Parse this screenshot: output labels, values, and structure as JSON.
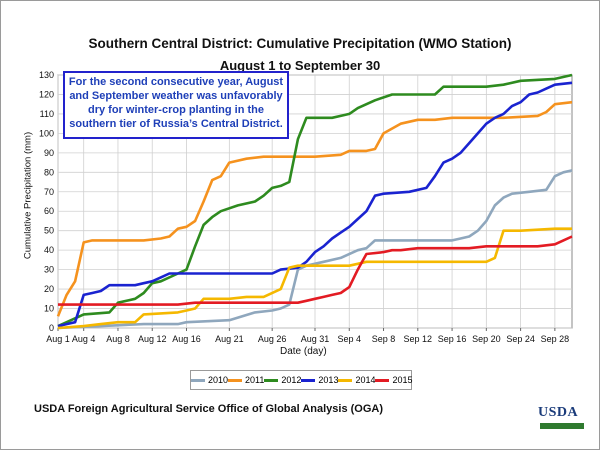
{
  "title": "Southern Central District: Cumulative Precipitation (WMO Station)",
  "subtitle": "August 1 to September 30",
  "annotation": "For the second consecutive year, August and September weather was unfavorably dry for winter-crop planting in the southern tier of Russia’s Central District.",
  "source": "USDA Foreign Agricultural Service Office of Global Analysis (OGA)",
  "logo_text": "USDA",
  "chart_data": {
    "type": "line",
    "xlabel": "Date (day)",
    "ylabel": "Cumulative Precipitation (mm)",
    "ylim": [
      0,
      130
    ],
    "yticks": [
      0,
      10,
      20,
      30,
      40,
      50,
      60,
      70,
      80,
      90,
      100,
      110,
      120,
      130
    ],
    "xtick_labels": [
      "Aug 1",
      "Aug 4",
      "Aug 8",
      "Aug 12",
      "Aug 16",
      "Aug 21",
      "Aug 26",
      "Aug 31",
      "Sep 4",
      "Sep 8",
      "Sep 12",
      "Sep 16",
      "Sep 20",
      "Sep 24",
      "Sep 28"
    ],
    "xtick_days": [
      0,
      3,
      7,
      11,
      15,
      20,
      25,
      30,
      34,
      38,
      42,
      46,
      50,
      54,
      58
    ],
    "x_days_range": [
      0,
      60
    ],
    "grid": true,
    "legend_position": "bottom",
    "series": [
      {
        "name": "2010",
        "color": "#8fa7bd",
        "points": [
          [
            0,
            0
          ],
          [
            5,
            1
          ],
          [
            10,
            2
          ],
          [
            14,
            2
          ],
          [
            15,
            3
          ],
          [
            20,
            4
          ],
          [
            23,
            8
          ],
          [
            25,
            9
          ],
          [
            26,
            10
          ],
          [
            27,
            12
          ],
          [
            28,
            30
          ],
          [
            29,
            32
          ],
          [
            31,
            34
          ],
          [
            33,
            36
          ],
          [
            35,
            40
          ],
          [
            36,
            41
          ],
          [
            37,
            45
          ],
          [
            42,
            45
          ],
          [
            46,
            45
          ],
          [
            47,
            46
          ],
          [
            48,
            47
          ],
          [
            49,
            50
          ],
          [
            50,
            55
          ],
          [
            51,
            63
          ],
          [
            52,
            67
          ],
          [
            53,
            69
          ],
          [
            55,
            70
          ],
          [
            57,
            71
          ],
          [
            58,
            78
          ],
          [
            59,
            80
          ],
          [
            60,
            81
          ]
        ]
      },
      {
        "name": "2011",
        "color": "#f5921e",
        "points": [
          [
            0,
            6
          ],
          [
            1,
            17
          ],
          [
            2,
            24
          ],
          [
            3,
            44
          ],
          [
            4,
            45
          ],
          [
            10,
            45
          ],
          [
            12,
            46
          ],
          [
            13,
            47
          ],
          [
            14,
            51
          ],
          [
            15,
            52
          ],
          [
            16,
            55
          ],
          [
            17,
            65
          ],
          [
            18,
            76
          ],
          [
            19,
            78
          ],
          [
            20,
            85
          ],
          [
            22,
            87
          ],
          [
            24,
            88
          ],
          [
            30,
            88
          ],
          [
            33,
            89
          ],
          [
            34,
            91
          ],
          [
            36,
            91
          ],
          [
            37,
            92
          ],
          [
            38,
            100
          ],
          [
            40,
            105
          ],
          [
            42,
            107
          ],
          [
            44,
            107
          ],
          [
            46,
            108
          ],
          [
            48,
            108
          ],
          [
            50,
            108
          ],
          [
            52,
            108
          ],
          [
            56,
            109
          ],
          [
            57,
            111
          ],
          [
            58,
            115
          ],
          [
            60,
            116
          ]
        ]
      },
      {
        "name": "2012",
        "color": "#2e8b1f",
        "points": [
          [
            0,
            1
          ],
          [
            1,
            3
          ],
          [
            2,
            5
          ],
          [
            3,
            7
          ],
          [
            6,
            8
          ],
          [
            7,
            13
          ],
          [
            9,
            15
          ],
          [
            10,
            18
          ],
          [
            11,
            23
          ],
          [
            12,
            24
          ],
          [
            14,
            28
          ],
          [
            15,
            30
          ],
          [
            16,
            42
          ],
          [
            17,
            53
          ],
          [
            18,
            57
          ],
          [
            19,
            60
          ],
          [
            21,
            63
          ],
          [
            23,
            65
          ],
          [
            24,
            68
          ],
          [
            25,
            72
          ],
          [
            26,
            73
          ],
          [
            27,
            75
          ],
          [
            28,
            97
          ],
          [
            29,
            108
          ],
          [
            32,
            108
          ],
          [
            33,
            109
          ],
          [
            34,
            110
          ],
          [
            35,
            113
          ],
          [
            36,
            115
          ],
          [
            37,
            117
          ],
          [
            39,
            120
          ],
          [
            44,
            120
          ],
          [
            45,
            124
          ],
          [
            50,
            124
          ],
          [
            52,
            125
          ],
          [
            54,
            127
          ],
          [
            58,
            128
          ],
          [
            60,
            130
          ]
        ]
      },
      {
        "name": "2013",
        "color": "#1a23d0",
        "points": [
          [
            0,
            1
          ],
          [
            1,
            2
          ],
          [
            2,
            3
          ],
          [
            3,
            17
          ],
          [
            4,
            18
          ],
          [
            5,
            19
          ],
          [
            6,
            22
          ],
          [
            9,
            22
          ],
          [
            10,
            23
          ],
          [
            11,
            24
          ],
          [
            12,
            26
          ],
          [
            13,
            28
          ],
          [
            20,
            28
          ],
          [
            25,
            28
          ],
          [
            26,
            30
          ],
          [
            28,
            31
          ],
          [
            29,
            34
          ],
          [
            30,
            39
          ],
          [
            31,
            42
          ],
          [
            32,
            46
          ],
          [
            33,
            49
          ],
          [
            34,
            52
          ],
          [
            35,
            56
          ],
          [
            36,
            60
          ],
          [
            37,
            68
          ],
          [
            38,
            69
          ],
          [
            41,
            70
          ],
          [
            43,
            72
          ],
          [
            44,
            78
          ],
          [
            45,
            85
          ],
          [
            46,
            87
          ],
          [
            47,
            90
          ],
          [
            48,
            95
          ],
          [
            49,
            100
          ],
          [
            50,
            105
          ],
          [
            51,
            108
          ],
          [
            52,
            110
          ],
          [
            53,
            114
          ],
          [
            54,
            116
          ],
          [
            55,
            120
          ],
          [
            56,
            121
          ],
          [
            57,
            123
          ],
          [
            58,
            125
          ],
          [
            60,
            126
          ]
        ]
      },
      {
        "name": "2014",
        "color": "#f5b800",
        "points": [
          [
            0,
            0
          ],
          [
            3,
            1
          ],
          [
            5,
            2
          ],
          [
            7,
            3
          ],
          [
            9,
            3
          ],
          [
            10,
            7
          ],
          [
            14,
            8
          ],
          [
            15,
            9
          ],
          [
            16,
            10
          ],
          [
            17,
            15
          ],
          [
            20,
            15
          ],
          [
            22,
            16
          ],
          [
            24,
            16
          ],
          [
            26,
            20
          ],
          [
            27,
            31
          ],
          [
            28,
            32
          ],
          [
            30,
            32
          ],
          [
            34,
            32
          ],
          [
            35,
            33
          ],
          [
            36,
            34
          ],
          [
            46,
            34
          ],
          [
            50,
            34
          ],
          [
            51,
            36
          ],
          [
            52,
            50
          ],
          [
            54,
            50
          ],
          [
            58,
            51
          ],
          [
            60,
            51
          ]
        ]
      },
      {
        "name": "2015",
        "color": "#e31b23",
        "points": [
          [
            0,
            12
          ],
          [
            10,
            12
          ],
          [
            14,
            12
          ],
          [
            16,
            13
          ],
          [
            20,
            13
          ],
          [
            24,
            13
          ],
          [
            28,
            13
          ],
          [
            29,
            14
          ],
          [
            30,
            15
          ],
          [
            31,
            16
          ],
          [
            32,
            17
          ],
          [
            33,
            18
          ],
          [
            34,
            21
          ],
          [
            35,
            30
          ],
          [
            36,
            38
          ],
          [
            38,
            39
          ],
          [
            39,
            40
          ],
          [
            40,
            40
          ],
          [
            42,
            41
          ],
          [
            44,
            41
          ],
          [
            46,
            41
          ],
          [
            48,
            41
          ],
          [
            50,
            42
          ],
          [
            52,
            42
          ],
          [
            56,
            42
          ],
          [
            58,
            43
          ],
          [
            59,
            45
          ],
          [
            60,
            47
          ]
        ]
      }
    ]
  }
}
